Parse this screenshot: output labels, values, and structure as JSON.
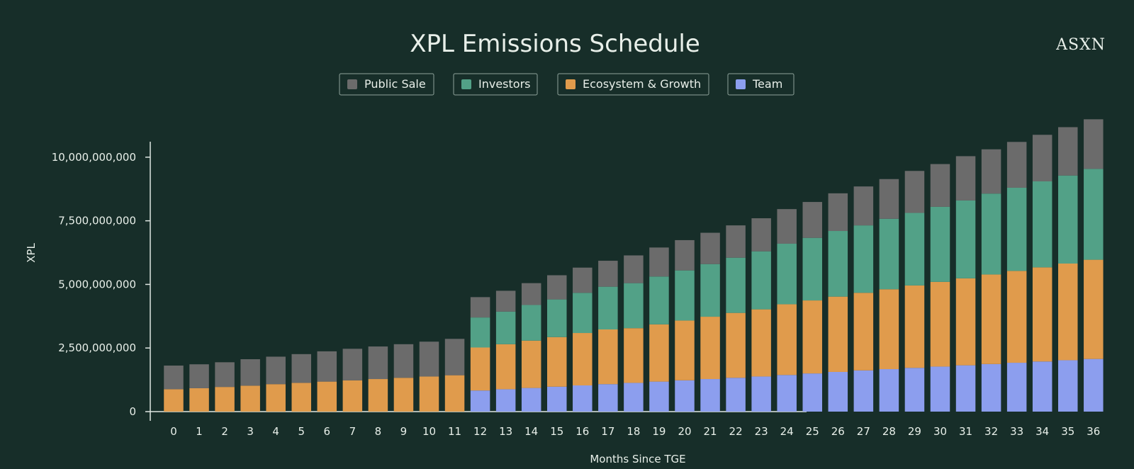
{
  "brand": "ASXN",
  "chart_data": {
    "type": "bar",
    "stacked": true,
    "title": "XPL Emissions Schedule",
    "xlabel": "Months Since TGE",
    "ylabel": "XPL",
    "ylim": [
      0,
      11500000000
    ],
    "yticks": [
      0,
      2500000000,
      5000000000,
      7500000000,
      10000000000
    ],
    "ytick_labels": [
      "0",
      "2,500,000,000",
      "5,000,000,000",
      "7,500,000,000",
      "10,000,000,000"
    ],
    "categories": [
      "0",
      "1",
      "2",
      "3",
      "4",
      "5",
      "6",
      "7",
      "8",
      "9",
      "10",
      "11",
      "12",
      "13",
      "14",
      "15",
      "16",
      "17",
      "18",
      "19",
      "20",
      "21",
      "22",
      "23",
      "24",
      "25",
      "26",
      "27",
      "28",
      "29",
      "30",
      "31",
      "32",
      "33",
      "34",
      "35",
      "36"
    ],
    "legend_position": "top-center",
    "series": [
      {
        "name": "Team",
        "color": "#8c9eee",
        "values": [
          0,
          0,
          0,
          0,
          0,
          0,
          0,
          0,
          0,
          0,
          0,
          0,
          830000000,
          880000000,
          930000000,
          980000000,
          1030000000,
          1080000000,
          1130000000,
          1180000000,
          1230000000,
          1280000000,
          1330000000,
          1380000000,
          1440000000,
          1500000000,
          1560000000,
          1620000000,
          1670000000,
          1720000000,
          1770000000,
          1820000000,
          1870000000,
          1920000000,
          1970000000,
          2020000000,
          2070000000
        ]
      },
      {
        "name": "Ecosystem & Growth",
        "color": "#e09b4c",
        "values": [
          880000000,
          920000000,
          970000000,
          1020000000,
          1080000000,
          1130000000,
          1180000000,
          1230000000,
          1280000000,
          1330000000,
          1380000000,
          1430000000,
          1690000000,
          1770000000,
          1860000000,
          1950000000,
          2060000000,
          2150000000,
          2150000000,
          2250000000,
          2350000000,
          2450000000,
          2550000000,
          2640000000,
          2780000000,
          2870000000,
          2960000000,
          3050000000,
          3140000000,
          3240000000,
          3330000000,
          3420000000,
          3520000000,
          3610000000,
          3700000000,
          3800000000,
          3900000000
        ]
      },
      {
        "name": "Investors",
        "color": "#52a187",
        "values": [
          0,
          0,
          0,
          0,
          0,
          0,
          0,
          0,
          0,
          0,
          0,
          0,
          1180000000,
          1280000000,
          1400000000,
          1480000000,
          1580000000,
          1680000000,
          1770000000,
          1880000000,
          1970000000,
          2070000000,
          2170000000,
          2280000000,
          2380000000,
          2460000000,
          2580000000,
          2650000000,
          2770000000,
          2850000000,
          2950000000,
          3060000000,
          3180000000,
          3270000000,
          3380000000,
          3460000000,
          3570000000
        ]
      },
      {
        "name": "Public Sale",
        "color": "#6b6b6b",
        "values": [
          930000000,
          940000000,
          970000000,
          1040000000,
          1080000000,
          1130000000,
          1190000000,
          1240000000,
          1280000000,
          1320000000,
          1370000000,
          1430000000,
          800000000,
          820000000,
          860000000,
          950000000,
          990000000,
          1020000000,
          1090000000,
          1140000000,
          1190000000,
          1230000000,
          1270000000,
          1300000000,
          1360000000,
          1410000000,
          1480000000,
          1530000000,
          1560000000,
          1650000000,
          1680000000,
          1740000000,
          1740000000,
          1800000000,
          1830000000,
          1900000000,
          1950000000
        ]
      }
    ],
    "legend_order": [
      "Public Sale",
      "Investors",
      "Ecosystem & Growth",
      "Team"
    ]
  }
}
